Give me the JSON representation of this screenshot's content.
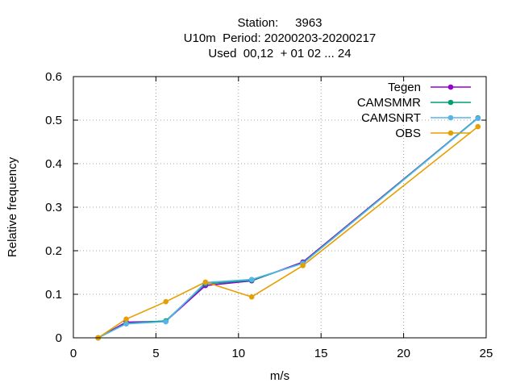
{
  "chart_data": {
    "type": "line",
    "title_lines": [
      "Station:     3963",
      "U10m  Period: 20200203-20200217",
      "Used  00,12  + 01 02 ... 24"
    ],
    "xlabel": "m/s",
    "ylabel": "Relative frequency",
    "xlim": [
      0,
      25
    ],
    "ylim": [
      0,
      0.6
    ],
    "xticks": [
      0,
      5,
      10,
      15,
      20,
      25
    ],
    "yticks": [
      0,
      0.1,
      0.2,
      0.3,
      0.4,
      0.5,
      0.6
    ],
    "ytick_labels": [
      "0",
      "0.1",
      "0.2",
      "0.3",
      "0.4",
      "0.5",
      "0.6"
    ],
    "grid": true,
    "legend_position": "top-right",
    "series": [
      {
        "name": "Tegen",
        "color": "#9400d3",
        "x": [
          1.5,
          3.2,
          5.6,
          8.0,
          10.8,
          13.9,
          24.5
        ],
        "y": [
          0.0,
          0.036,
          0.038,
          0.12,
          0.131,
          0.174,
          0.505
        ]
      },
      {
        "name": "CAMSMMR",
        "color": "#009e73",
        "x": [
          1.5,
          3.2,
          5.6,
          8.0,
          10.8,
          13.9,
          24.5
        ],
        "y": [
          0.0,
          0.033,
          0.039,
          0.124,
          0.132,
          0.172,
          0.505
        ]
      },
      {
        "name": "CAMSNRT",
        "color": "#56b4e9",
        "x": [
          1.5,
          3.2,
          5.6,
          8.0,
          10.8,
          13.9,
          24.5
        ],
        "y": [
          0.0,
          0.032,
          0.037,
          0.127,
          0.134,
          0.171,
          0.504
        ]
      },
      {
        "name": "OBS",
        "color": "#e69f00",
        "x": [
          1.5,
          3.2,
          5.6,
          8.0,
          10.8,
          13.9,
          24.5
        ],
        "y": [
          0.0,
          0.043,
          0.083,
          0.128,
          0.094,
          0.166,
          0.485
        ]
      }
    ]
  }
}
